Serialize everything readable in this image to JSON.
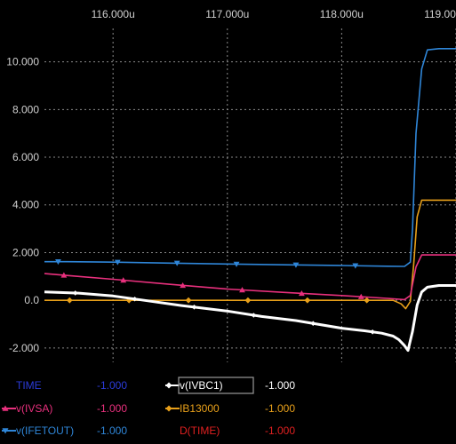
{
  "chart_data": {
    "type": "line",
    "xlim": [
      115.4,
      119.0
    ],
    "ylim": [
      -2.6,
      11.4
    ],
    "x_ticks": [
      116.0,
      117.0,
      118.0,
      119.0
    ],
    "x_tick_labels": [
      "116.000u",
      "117.000u",
      "118.000u",
      "119.00"
    ],
    "y_ticks": [
      10,
      8,
      6,
      4,
      2,
      0,
      -2
    ],
    "y_tick_labels": [
      "10.000",
      "8.000",
      "6.000",
      "4.000",
      "2.000",
      "0.0",
      "-2.000"
    ],
    "grid": true,
    "background": "#000000",
    "series": [
      {
        "name": "v(IFETOUT)",
        "color": "#2f86d8",
        "marker": "triangle-down",
        "x": [
          115.4,
          115.6,
          116.0,
          116.5,
          117.0,
          117.5,
          118.0,
          118.4,
          118.55,
          118.6,
          118.62,
          118.65,
          118.7,
          118.75,
          118.85,
          119.0
        ],
        "y": [
          1.62,
          1.62,
          1.6,
          1.56,
          1.52,
          1.49,
          1.46,
          1.43,
          1.42,
          1.6,
          3.0,
          7.0,
          9.7,
          10.5,
          10.55,
          10.55
        ]
      },
      {
        "name": "v(IVSA)",
        "color": "#e8307d",
        "marker": "triangle-up",
        "x": [
          115.4,
          115.7,
          116.0,
          116.5,
          117.0,
          117.5,
          118.0,
          118.4,
          118.55,
          118.6,
          118.65,
          118.7,
          119.0
        ],
        "y": [
          1.12,
          1.0,
          0.88,
          0.67,
          0.47,
          0.33,
          0.2,
          0.08,
          0.03,
          0.2,
          1.4,
          1.9,
          1.9
        ]
      },
      {
        "name": "IB13000",
        "color": "#e8a01a",
        "marker": "diamond",
        "x": [
          115.4,
          115.6,
          116.0,
          116.5,
          117.0,
          117.5,
          118.0,
          118.45,
          118.52,
          118.56,
          118.6,
          118.63,
          118.66,
          118.7,
          119.0
        ],
        "y": [
          0.0,
          0.0,
          0.0,
          0.0,
          0.0,
          0.0,
          0.0,
          0.0,
          -0.15,
          -0.35,
          -0.05,
          1.5,
          3.5,
          4.2,
          4.2
        ]
      },
      {
        "name": "v(IVBC1)",
        "color": "#ffffff",
        "marker": "diamond",
        "x": [
          115.4,
          115.7,
          116.0,
          116.3,
          116.6,
          117.0,
          117.3,
          117.6,
          118.0,
          118.2,
          118.35,
          118.45,
          118.5,
          118.55,
          118.58,
          118.62,
          118.66,
          118.7,
          118.75,
          118.85,
          119.0
        ],
        "y": [
          0.35,
          0.3,
          0.18,
          -0.02,
          -0.22,
          -0.45,
          -0.68,
          -0.85,
          -1.17,
          -1.28,
          -1.38,
          -1.5,
          -1.65,
          -1.9,
          -2.1,
          -1.3,
          -0.2,
          0.35,
          0.55,
          0.62,
          0.62
        ]
      }
    ]
  },
  "legend": {
    "rows": [
      [
        {
          "label": "TIME",
          "value": "-1.000",
          "color": "#2b3bd9",
          "marker": "none"
        },
        {
          "label": "v(IVBC1)",
          "value": "-1.000",
          "color": "#ffffff",
          "marker": "diamond",
          "selected": true
        }
      ],
      [
        {
          "label": "v(IVSA)",
          "value": "-1.000",
          "color": "#e8307d",
          "marker": "triangle-up"
        },
        {
          "label": "IB13000",
          "value": "-1.000",
          "color": "#e8a01a",
          "marker": "diamond"
        }
      ],
      [
        {
          "label": "v(IFETOUT)",
          "value": "-1.000",
          "color": "#2f86d8",
          "marker": "triangle-down"
        },
        {
          "label": "D(TIME)",
          "value": "-1.000",
          "color": "#e02020",
          "marker": "none"
        }
      ]
    ]
  }
}
